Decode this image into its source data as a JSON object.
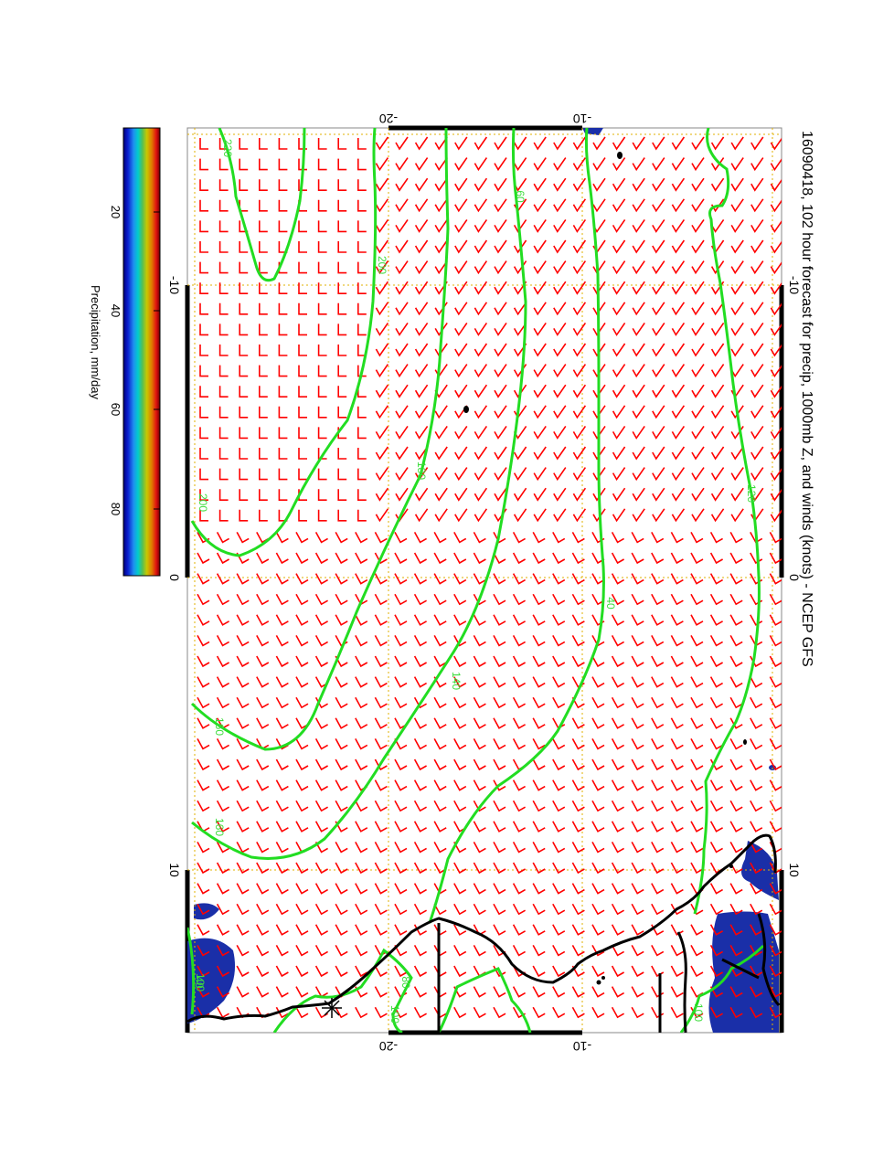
{
  "title": "16090418, 102 hour forecast for precip, 1000mb Z, and winds (knots) - NCEP GFS",
  "colorbar": {
    "label": "Precipitation, mm/day",
    "ticks": [
      "20",
      "40",
      "60",
      "80"
    ]
  },
  "axes": {
    "top_ticks": [
      "-20",
      "-10"
    ],
    "bottom_ticks": [
      "-20",
      "-10"
    ],
    "left_ticks": [
      "-10",
      "0",
      "10"
    ],
    "right_ticks": [
      "-10",
      "0",
      "10"
    ]
  },
  "contour_labels": [
    "220",
    "200",
    "200",
    "180",
    "160",
    "160",
    "140",
    "120",
    "100",
    "100",
    "100",
    "80",
    "60",
    "40",
    "40"
  ],
  "colors": {
    "wind_barbs": "#ff0000",
    "contours": "#22dd22",
    "coastline": "#000000",
    "grid": "#e0b000",
    "precip": "#1a2fa8"
  }
}
